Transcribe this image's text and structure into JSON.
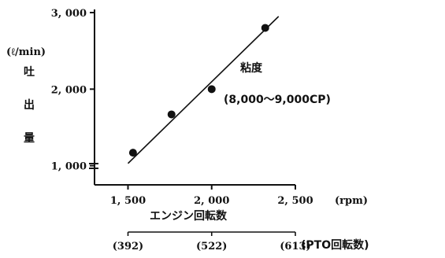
{
  "chart_data": {
    "type": "scatter",
    "y_unit_label": "(ℓ/min)",
    "ylabel_chars": [
      "吐",
      "出",
      "量"
    ],
    "xlabel": "エンジン回転数",
    "x_unit_label": "(rpm)",
    "secondary_x": {
      "ticks": [
        {
          "value": 1500,
          "label": "(392)"
        },
        {
          "value": 2000,
          "label": "(522)"
        },
        {
          "value": 2500,
          "label": "(613)"
        }
      ],
      "axis_label": "(PTO回転数)"
    },
    "xlim": [
      1300,
      2500
    ],
    "ylim": [
      750,
      3000
    ],
    "x_ticks": [
      {
        "value": 1500,
        "label": "1, 500"
      },
      {
        "value": 2000,
        "label": "2, 000"
      },
      {
        "value": 2500,
        "label": "2, 500"
      }
    ],
    "y_ticks": [
      {
        "value": 1000,
        "label": "1, 000"
      },
      {
        "value": 2000,
        "label": "2, 000"
      },
      {
        "value": 3000,
        "label": "3, 000"
      }
    ],
    "series": [
      {
        "points": [
          {
            "x": 1530,
            "y": 1170
          },
          {
            "x": 1760,
            "y": 1670
          },
          {
            "x": 2000,
            "y": 2000
          },
          {
            "x": 2320,
            "y": 2800
          }
        ]
      }
    ],
    "trend_line": {
      "x": [
        1500,
        2400
      ],
      "y": [
        1030,
        2950
      ]
    },
    "annotation": {
      "title": "粘度",
      "text": "(8,000～9,000CP)"
    },
    "grid": false,
    "legend": "none"
  }
}
